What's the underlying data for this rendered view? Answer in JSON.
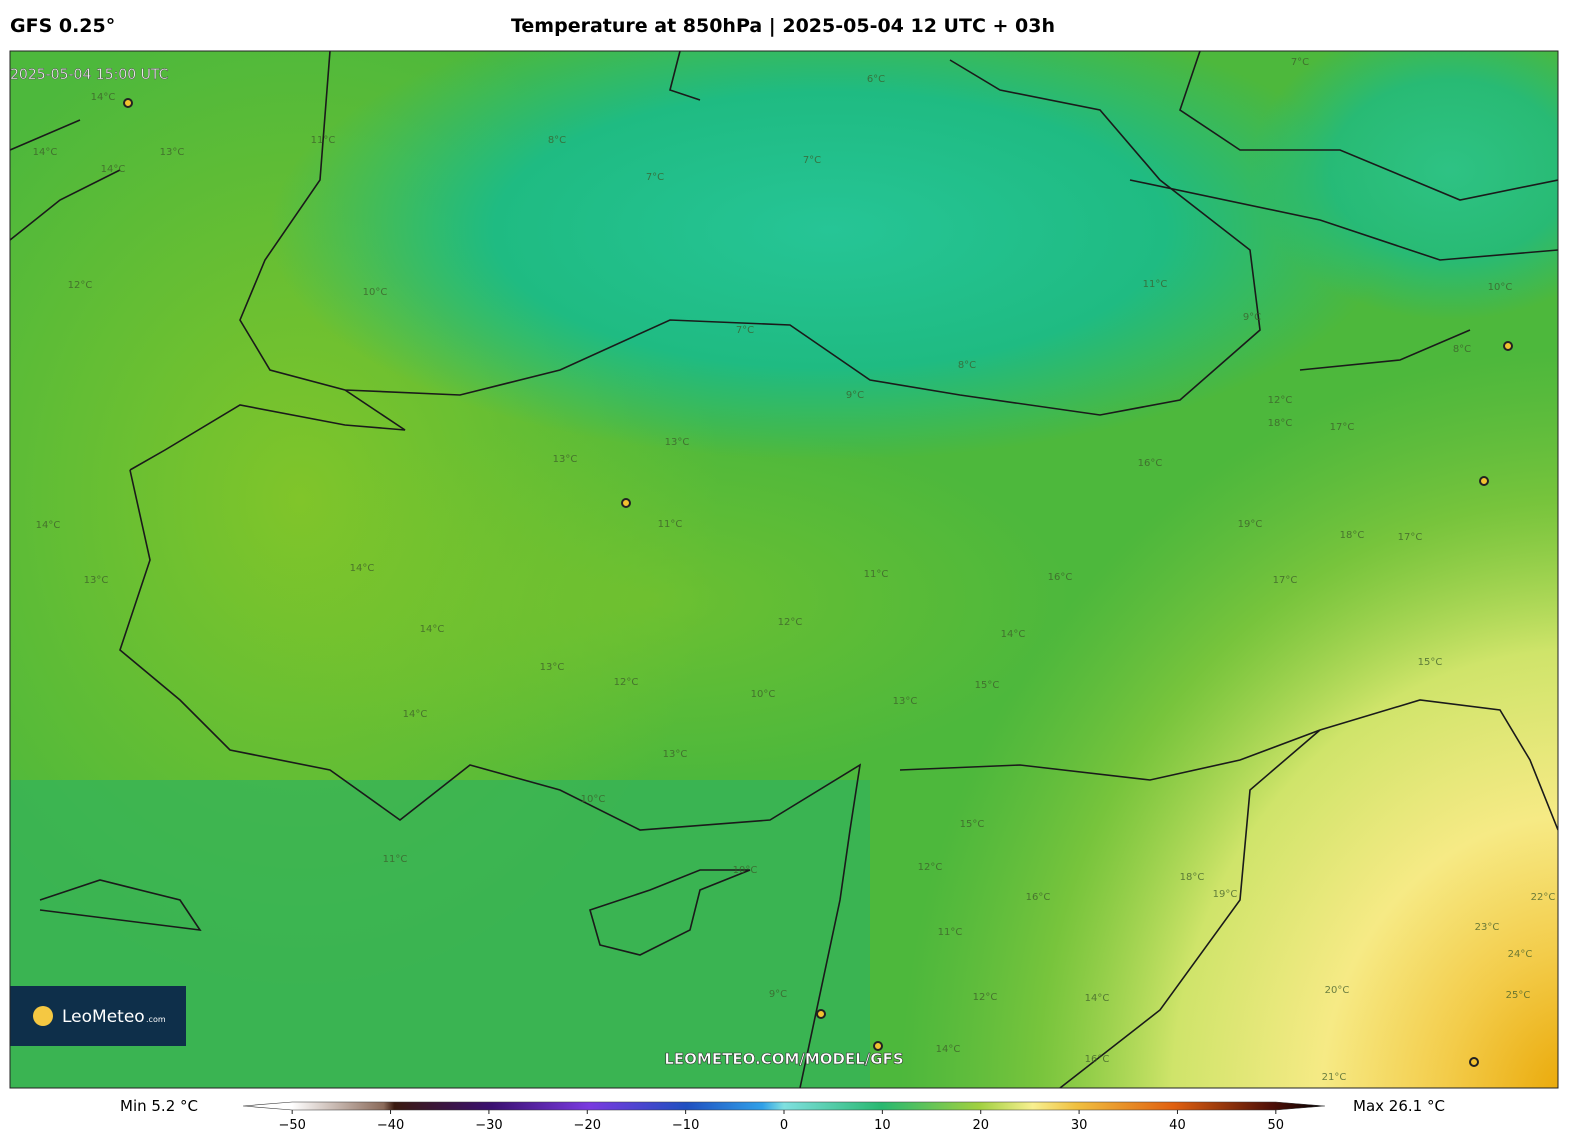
{
  "header": {
    "model": "GFS 0.25°",
    "title": "Temperature at 850hPa | 2025-05-04 12 UTC + 03h",
    "valid_time": "2025-05-04 15:00 UTC"
  },
  "map": {
    "contour_labels": [
      "14°C",
      "14°C",
      "14°C",
      "13°C",
      "11°C",
      "8°C",
      "7°C",
      "6°C",
      "7°C",
      "7°C",
      "12°C",
      "10°C",
      "7°C",
      "11°C",
      "9°C",
      "8°C",
      "9°C",
      "10°C",
      "8°C",
      "12°C",
      "18°C",
      "17°C",
      "16°C",
      "13°C",
      "13°C",
      "11°C",
      "14°C",
      "13°C",
      "14°C",
      "14°C",
      "11°C",
      "16°C",
      "17°C",
      "18°C",
      "17°C",
      "19°C",
      "12°C",
      "14°C",
      "15°C",
      "13°C",
      "12°C",
      "14°C",
      "10°C",
      "13°C",
      "15°C",
      "13°C",
      "10°C",
      "15°C",
      "11°C",
      "10°C",
      "12°C",
      "18°C",
      "16°C",
      "19°C",
      "11°C",
      "20°C",
      "22°C",
      "23°C",
      "24°C",
      "25°C",
      "9°C",
      "14°C",
      "16°C",
      "14°C",
      "21°C",
      "12°C"
    ],
    "watermark": "LEOMETEO.COM/MODEL/GFS",
    "logo": {
      "name": "LeoMeteo",
      "suffix": ".com"
    }
  },
  "colorbar": {
    "min_label": "Min 5.2 °C",
    "max_label": "Max 26.1 °C",
    "clim": [
      -55,
      55
    ],
    "ticks": [
      {
        "value": -50,
        "label": "−50"
      },
      {
        "value": -40,
        "label": "−40"
      },
      {
        "value": -30,
        "label": "−30"
      },
      {
        "value": -20,
        "label": "−20"
      },
      {
        "value": -10,
        "label": "−10"
      },
      0,
      10,
      20,
      30,
      40,
      50
    ]
  }
}
